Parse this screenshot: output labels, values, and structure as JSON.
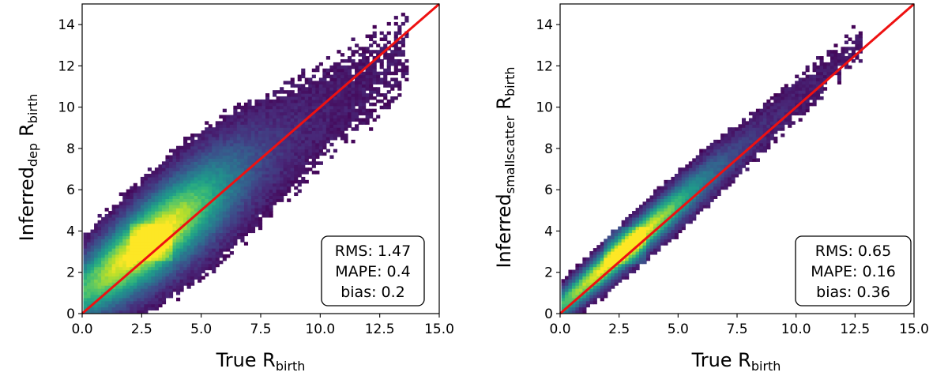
{
  "chart_data": [
    {
      "type": "heatmap",
      "title": "",
      "xlabel": {
        "main": "True R",
        "sub": "birth"
      },
      "ylabel": {
        "main": "Inferred",
        "sub1": "dep",
        "mid": "R",
        "sub2": "birth"
      },
      "xlim": [
        0,
        15
      ],
      "ylim": [
        0,
        15
      ],
      "xticks": [
        "0.0",
        "2.5",
        "5.0",
        "7.5",
        "10.0",
        "12.5",
        "15.0"
      ],
      "yticks": [
        "0",
        "2",
        "4",
        "6",
        "8",
        "10",
        "12",
        "14"
      ],
      "xtick_values": [
        0,
        2.5,
        5,
        7.5,
        10,
        12.5,
        15
      ],
      "ytick_values": [
        0,
        2,
        4,
        6,
        8,
        10,
        12,
        14
      ],
      "reference_line": {
        "x": [
          0,
          15
        ],
        "y": [
          0,
          15
        ],
        "color": "#ee1111"
      },
      "density": {
        "slope": 0.85,
        "intercept": 1.05,
        "scatter": 1.45,
        "peak_x": 2.8,
        "peak_y": 3.4,
        "x_max": 13.6
      },
      "stats": [
        "RMS: 1.47",
        "MAPE: 0.4",
        "bias: 0.2"
      ],
      "colormap": "viridis"
    },
    {
      "type": "heatmap",
      "title": "",
      "xlabel": {
        "main": "True R",
        "sub": "birth"
      },
      "ylabel": {
        "main": "Inferred",
        "sub1": "smallscatter",
        "mid": "R",
        "sub2": "birth"
      },
      "xlim": [
        0,
        15
      ],
      "ylim": [
        0,
        15
      ],
      "xticks": [
        "0.0",
        "2.5",
        "5.0",
        "7.5",
        "10.0",
        "12.5",
        "15.0"
      ],
      "yticks": [
        "0",
        "2",
        "4",
        "6",
        "8",
        "10",
        "12",
        "14"
      ],
      "xtick_values": [
        0,
        2.5,
        5,
        7.5,
        10,
        12.5,
        15
      ],
      "ytick_values": [
        0,
        2,
        4,
        6,
        8,
        10,
        12,
        14
      ],
      "reference_line": {
        "x": [
          0,
          15
        ],
        "y": [
          0,
          15
        ],
        "color": "#ee1111"
      },
      "density": {
        "slope": 1.0,
        "intercept": 0.35,
        "scatter": 0.62,
        "peak_x": 2.7,
        "peak_y": 3.2,
        "x_max": 12.8
      },
      "stats": [
        "RMS: 0.65",
        "MAPE: 0.16",
        "bias: 0.36"
      ],
      "colormap": "viridis"
    }
  ]
}
